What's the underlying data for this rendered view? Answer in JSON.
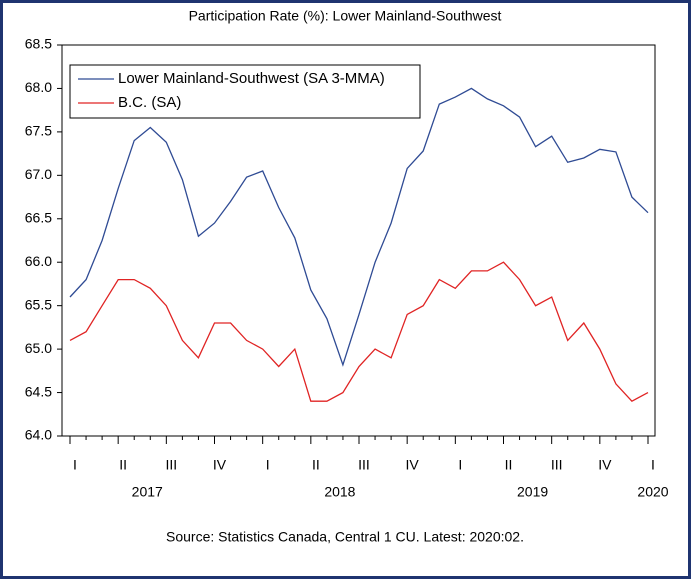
{
  "chart_data": {
    "type": "line",
    "title": "Participation Rate (%): Lower Mainland-Southwest",
    "source": "Source: Statistics Canada, Central 1 CU. Latest: 2020:02.",
    "categories": [
      "I",
      null,
      null,
      "II",
      null,
      null,
      "III",
      null,
      null,
      "IV",
      null,
      null,
      "I",
      null,
      null,
      "II",
      null,
      null,
      "III",
      null,
      null,
      "IV",
      null,
      null,
      "I",
      null,
      null,
      "II",
      null,
      null,
      "III",
      null,
      null,
      "IV",
      null,
      null,
      "I"
    ],
    "year_labels": [
      "2017",
      "2018",
      "2019",
      "2020"
    ],
    "series": [
      {
        "name": "Lower Mainland-Southwest (SA 3-MMA)",
        "color": "#2f4b94",
        "values": [
          65.6,
          65.8,
          66.25,
          66.85,
          67.4,
          67.55,
          67.38,
          66.95,
          66.3,
          66.45,
          66.7,
          66.98,
          67.05,
          66.63,
          66.28,
          65.68,
          65.35,
          64.82,
          65.4,
          66.0,
          66.45,
          67.08,
          67.28,
          67.82,
          67.9,
          68.0,
          67.88,
          67.8,
          67.67,
          67.33,
          67.45,
          67.15,
          67.2,
          67.3,
          67.27,
          66.75,
          66.57
        ]
      },
      {
        "name": "B.C. (SA)",
        "color": "#e02424",
        "values": [
          65.1,
          65.2,
          65.5,
          65.8,
          65.8,
          65.7,
          65.5,
          65.1,
          64.9,
          65.3,
          65.3,
          65.1,
          65.0,
          64.8,
          65.0,
          64.4,
          64.4,
          64.5,
          64.8,
          65.0,
          64.9,
          65.4,
          65.5,
          65.8,
          65.7,
          65.9,
          65.9,
          66.0,
          65.8,
          65.5,
          65.6,
          65.1,
          65.3,
          65.0,
          64.6,
          64.4,
          64.5
        ]
      }
    ],
    "ylim": [
      64.0,
      68.5
    ],
    "yticks": [
      {
        "value": 64,
        "label": "64.0"
      },
      64.5,
      {
        "value": 65,
        "label": "65.0"
      },
      65.5,
      {
        "value": 66,
        "label": "66.0"
      },
      66.5,
      {
        "value": 67,
        "label": "67.0"
      },
      67.5,
      {
        "value": 68,
        "label": "68.0"
      },
      68.5
    ],
    "legend": "upper left",
    "grid": false
  }
}
